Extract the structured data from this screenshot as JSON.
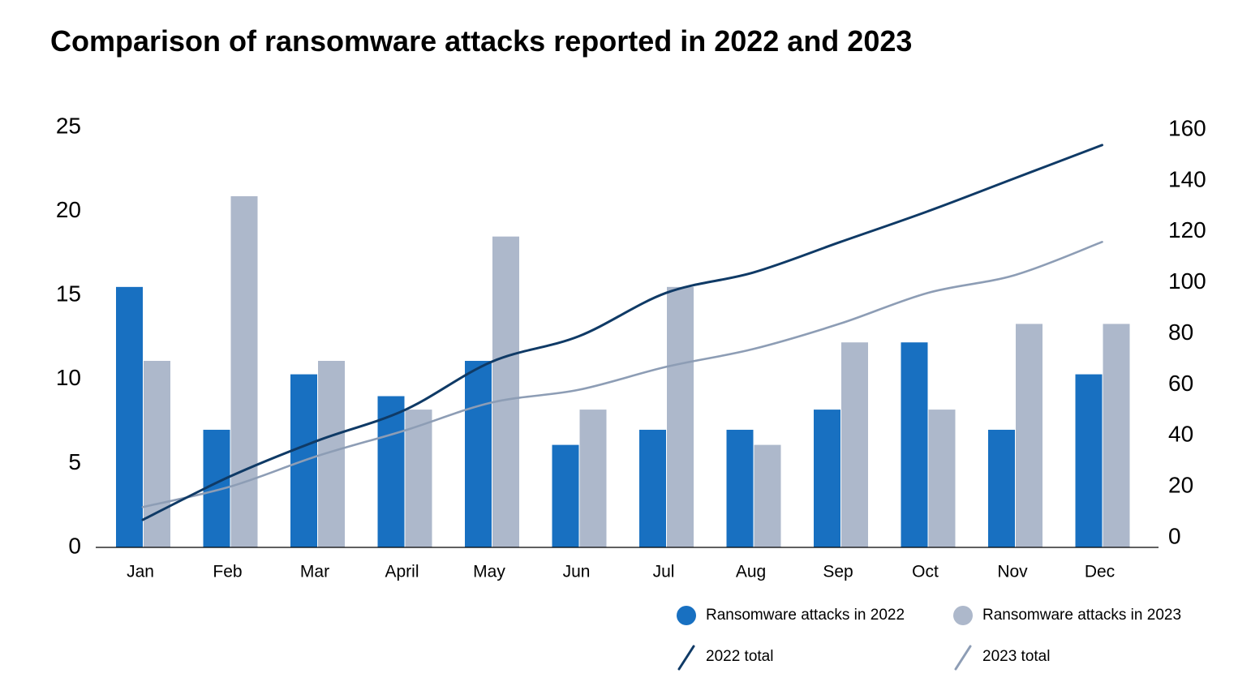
{
  "chart_data": {
    "type": "bar",
    "title": "Comparison of ransomware attacks reported in 2022 and 2023",
    "categories": [
      "Jan",
      "Feb",
      "Mar",
      "April",
      "May",
      "Jun",
      "Jul",
      "Aug",
      "Sep",
      "Oct",
      "Nov",
      "Dec"
    ],
    "series": [
      {
        "name": "Ransomware attacks in 2022",
        "type": "bar",
        "axis": "left",
        "color": "#1870c1",
        "values": [
          15.5,
          7,
          10.3,
          9,
          11.1,
          6.1,
          7,
          7,
          8.2,
          12.2,
          7,
          10.3
        ]
      },
      {
        "name": "Ransomware attacks in 2023",
        "type": "bar",
        "axis": "left",
        "color": "#adb8cb",
        "values": [
          11.1,
          20.9,
          11.1,
          8.2,
          18.5,
          8.2,
          15.5,
          6.1,
          12.2,
          8.2,
          13.3,
          13.3
        ]
      },
      {
        "name": "2022 total",
        "type": "line",
        "axis": "right",
        "color": "#0f3a66",
        "values": [
          7,
          24,
          38,
          50,
          69,
          79,
          96,
          104,
          116,
          128,
          141,
          154
        ]
      },
      {
        "name": "2023 total",
        "type": "line",
        "axis": "right",
        "color": "#8d9db5",
        "values": [
          12,
          20,
          32,
          42,
          53,
          58,
          67,
          74,
          84,
          96,
          103,
          116
        ]
      }
    ],
    "y_left": {
      "lim": [
        0,
        25
      ],
      "ticks": [
        "0",
        "5",
        "10",
        "15",
        "20",
        "25"
      ]
    },
    "y_right": {
      "lim": [
        0,
        160
      ],
      "ticks": [
        "0",
        "20",
        "40",
        "60",
        "80",
        "100",
        "120",
        "140",
        "160"
      ]
    },
    "xlabel": "",
    "ylabel": "",
    "grid": false,
    "legend": {
      "placement": "bottom-right",
      "entries": [
        "Ransomware attacks in 2022",
        "Ransomware attacks in 2023",
        "2022 total",
        "2023 total"
      ]
    }
  }
}
